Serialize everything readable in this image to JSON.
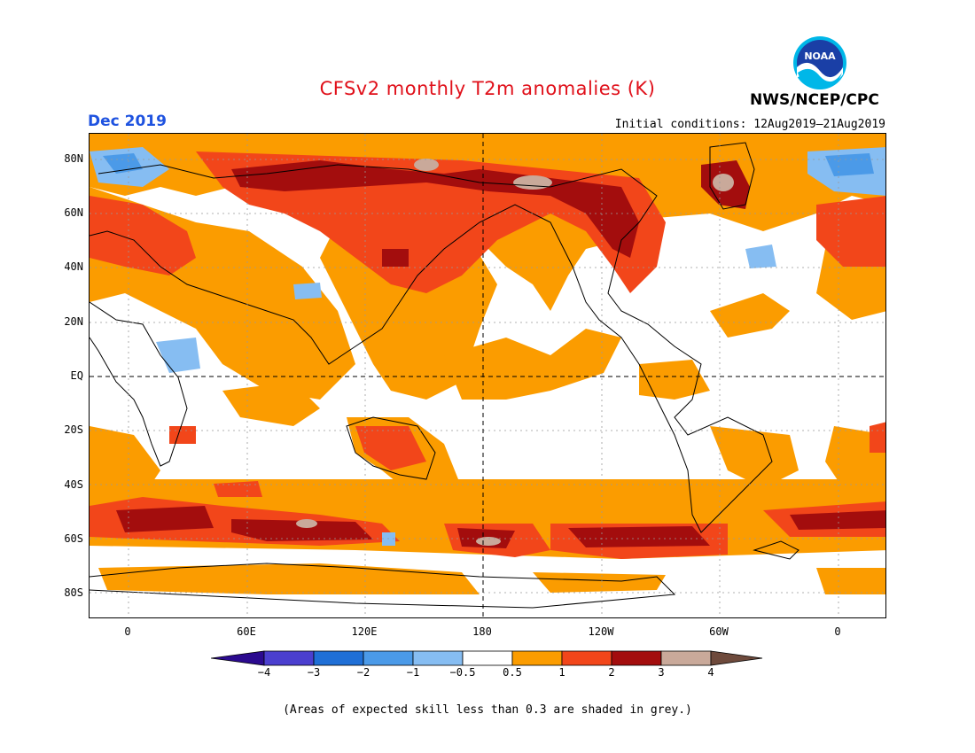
{
  "title": "CFSv2 monthly T2m anomalies (K)",
  "month": "Dec 2019",
  "initial_conditions": "Initial conditions: 12Aug2019–21Aug2019",
  "agency": "NWS/NCEP/CPC",
  "logo": {
    "text": "NOAA",
    "icon": "noaa-logo-icon"
  },
  "lat_labels": [
    "80N",
    "60N",
    "40N",
    "20N",
    "EQ",
    "20S",
    "40S",
    "60S",
    "80S"
  ],
  "lon_labels": [
    "0",
    "60E",
    "120E",
    "180",
    "120W",
    "60W",
    "0"
  ],
  "colorbar": {
    "labels": [
      "−4",
      "−3",
      "−2",
      "−1",
      "−0.5",
      "0.5",
      "1",
      "2",
      "3",
      "4"
    ],
    "colors": [
      "#2b0a8f",
      "#4b3fcf",
      "#1f6fd6",
      "#4b9ae8",
      "#86bdf2",
      "#ffffff",
      "#fb9c00",
      "#f2461a",
      "#a30d0d",
      "#c9a99a",
      "#6e4a3c"
    ]
  },
  "footnote": "(Areas of expected skill less than 0.3 are shaded in grey.)",
  "colors": {
    "title": "#e0101a",
    "month": "#1f53e0",
    "positive_1": "#fb9c00",
    "positive_2": "#f2461a",
    "positive_3": "#a30d0d",
    "positive_4": "#c9a99a",
    "negative_1": "#86bdf2",
    "negative_2": "#4b9ae8"
  }
}
